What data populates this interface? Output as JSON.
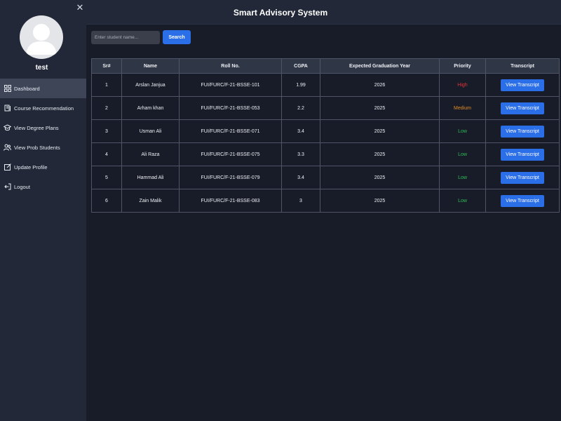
{
  "app": {
    "title": "Smart Advisory System"
  },
  "sidebar": {
    "close_icon": "✕",
    "username": "test",
    "items": [
      {
        "label": "Dashboard",
        "icon": "dashboard-icon",
        "active": true
      },
      {
        "label": "Course Recommendation",
        "icon": "book-icon",
        "active": false
      },
      {
        "label": "View Degree Plans",
        "icon": "graduation-cap-icon",
        "active": false
      },
      {
        "label": "View Prob Students",
        "icon": "users-icon",
        "active": false
      },
      {
        "label": "Update Profile",
        "icon": "edit-icon",
        "active": false
      },
      {
        "label": "Logout",
        "icon": "logout-icon",
        "active": false
      }
    ]
  },
  "search": {
    "placeholder": "Enter student name...",
    "value": "",
    "button_label": "Search"
  },
  "table": {
    "headers": [
      "Sr#",
      "Name",
      "Roll No.",
      "CGPA",
      "Expected Graduation Year",
      "Priority",
      "Transcript"
    ],
    "rows": [
      {
        "sr": "1",
        "name": "Arslan Janjua",
        "roll": "FUI/FURC/F-21-BSSE-101",
        "cgpa": "1.99",
        "grad_year": "2026",
        "priority": "High",
        "transcript_label": "View Transcript"
      },
      {
        "sr": "2",
        "name": "Arham khan",
        "roll": "FUI/FURC/F-21-BSSE-053",
        "cgpa": "2.2",
        "grad_year": "2025",
        "priority": "Medium",
        "transcript_label": "View Transcript"
      },
      {
        "sr": "3",
        "name": "Usman Ali",
        "roll": "FUI/FURC/F-21-BSSE-071",
        "cgpa": "3.4",
        "grad_year": "2025",
        "priority": "Low",
        "transcript_label": "View Transcript"
      },
      {
        "sr": "4",
        "name": "Ali Raza",
        "roll": "FUI/FURC/F-21-BSSE-075",
        "cgpa": "3.3",
        "grad_year": "2025",
        "priority": "Low",
        "transcript_label": "View Transcript"
      },
      {
        "sr": "5",
        "name": "Hammad Ali",
        "roll": "FUI/FURC/F-21-BSSE-079",
        "cgpa": "3.4",
        "grad_year": "2025",
        "priority": "Low",
        "transcript_label": "View Transcript"
      },
      {
        "sr": "6",
        "name": "Zain Malik",
        "roll": "FUI/FURC/F-21-BSSE-083",
        "cgpa": "3",
        "grad_year": "2025",
        "priority": "Low",
        "transcript_label": "View Transcript"
      }
    ]
  },
  "colors": {
    "background": "#171c28",
    "sidebar": "#222838",
    "accent": "#2a6ee8",
    "priority_high": "#e2333b",
    "priority_medium": "#e08a23",
    "priority_low": "#2dbf54"
  }
}
